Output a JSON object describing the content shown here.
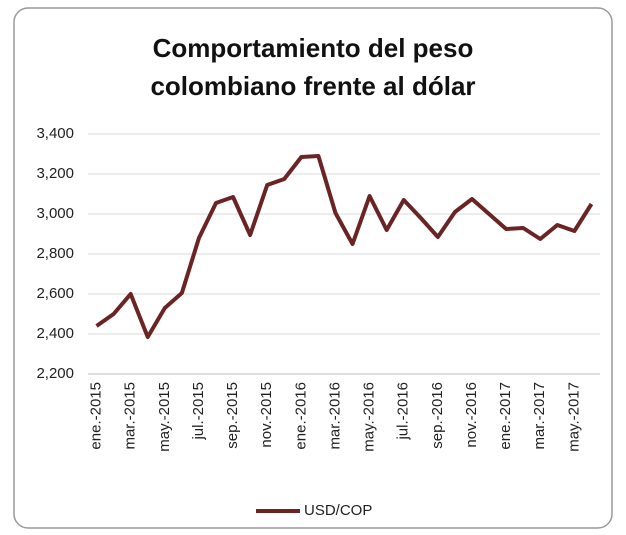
{
  "chart_data": {
    "type": "line",
    "title": [
      "Comportamiento del peso",
      "colombiano frente al dólar"
    ],
    "categories": [
      "ene.-2015",
      null,
      "mar.-2015",
      null,
      "may.-2015",
      null,
      "jul.-2015",
      null,
      "sep.-2015",
      null,
      "nov.-2015",
      null,
      "ene.-2016",
      null,
      "mar.-2016",
      null,
      "may.-2016",
      null,
      "jul.-2016",
      null,
      "sep.-2016",
      null,
      "nov.-2016",
      null,
      "ene.-2017",
      null,
      "mar.-2017",
      null,
      "may.-2017",
      null
    ],
    "series": [
      {
        "name": "USD/COP",
        "color": "#6b2424",
        "values": [
          2440,
          2500,
          2600,
          2385,
          2530,
          2605,
          2880,
          3055,
          3085,
          2895,
          3145,
          3175,
          3285,
          3290,
          3005,
          2850,
          3090,
          2920,
          3070,
          2980,
          2885,
          3010,
          3075,
          3000,
          2925,
          2930,
          2875,
          2945,
          2915,
          3050
        ]
      }
    ],
    "ylim": [
      2200,
      3400
    ],
    "yticks": [
      {
        "value": 2200,
        "label": "2,200"
      },
      {
        "value": 2400,
        "label": "2,400"
      },
      {
        "value": 2600,
        "label": "2,600"
      },
      {
        "value": 2800,
        "label": "2,800"
      },
      {
        "value": 3000,
        "label": "3,000"
      },
      {
        "value": 3200,
        "label": "3,200"
      },
      {
        "value": 3400,
        "label": "3,400"
      }
    ],
    "grid": true,
    "legend": "bottom"
  }
}
